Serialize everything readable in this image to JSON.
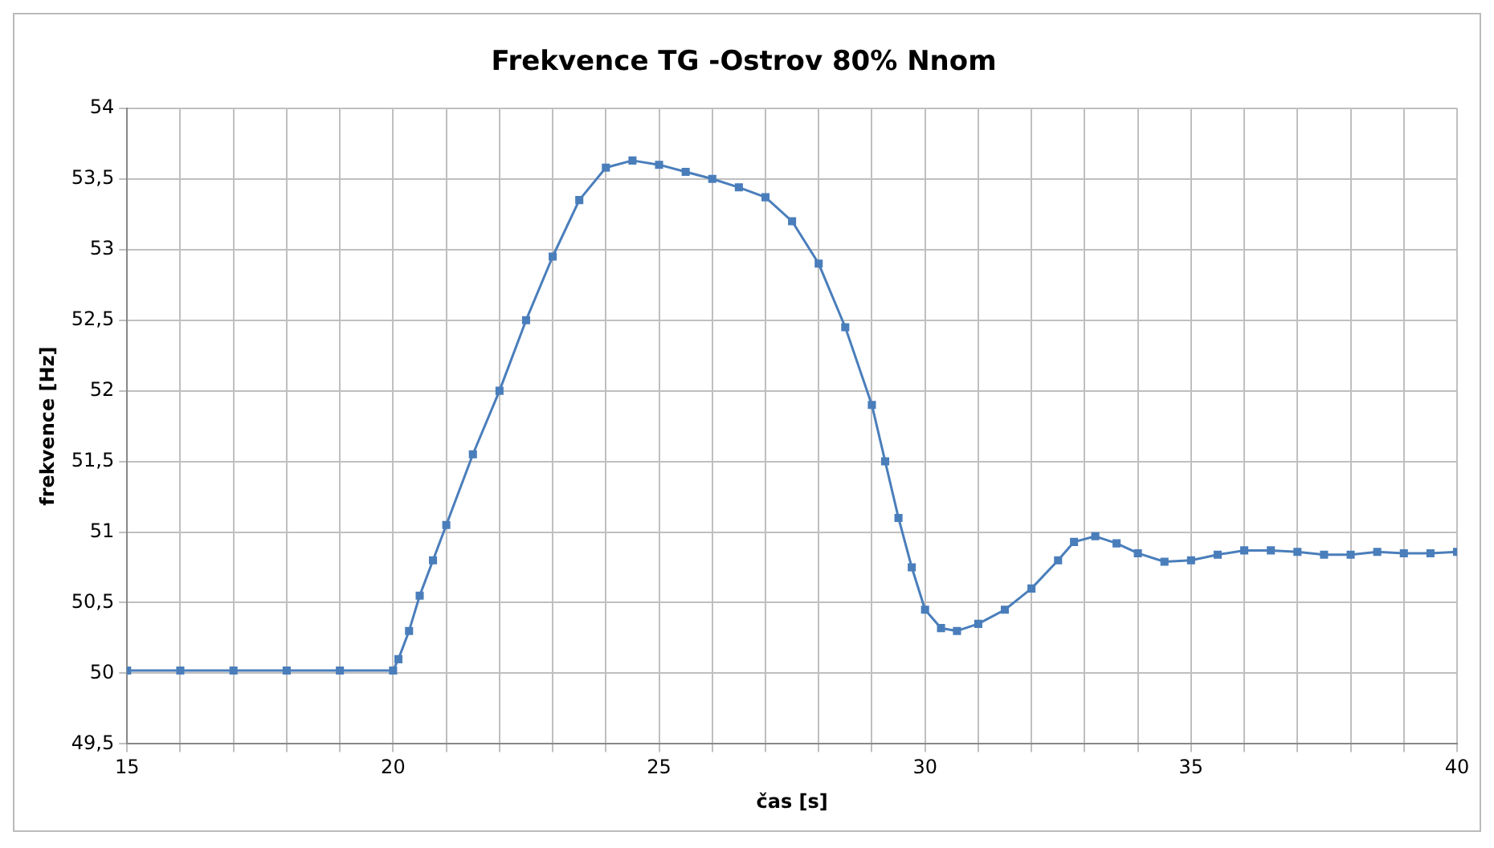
{
  "chart_data": {
    "type": "line",
    "title": "Frekvence TG -Ostrov 80% Nnom",
    "xlabel": "čas [s]",
    "ylabel": "frekvence [Hz]",
    "x": [
      15,
      16,
      17,
      18,
      19,
      20,
      20.1,
      20.3,
      20.5,
      20.75,
      21,
      21.5,
      22,
      22.5,
      23,
      23.5,
      24,
      24.5,
      25,
      25.5,
      26,
      26.5,
      27,
      27.5,
      28,
      28.5,
      29,
      29.25,
      29.5,
      29.75,
      30,
      30.3,
      30.6,
      31,
      31.5,
      32,
      32.5,
      32.8,
      33.2,
      33.6,
      34,
      34.5,
      35,
      35.5,
      36,
      36.5,
      37,
      37.5,
      38,
      38.5,
      39,
      39.5,
      40
    ],
    "series": [
      {
        "color": "#4a7ebb",
        "values": [
          50.02,
          50.02,
          50.02,
          50.02,
          50.02,
          50.02,
          50.1,
          50.3,
          50.55,
          50.8,
          51.05,
          51.55,
          52,
          52.5,
          52.95,
          53.35,
          53.58,
          53.63,
          53.6,
          53.55,
          53.5,
          53.44,
          53.37,
          53.2,
          52.9,
          52.45,
          51.9,
          51.5,
          51.1,
          50.75,
          50.45,
          50.32,
          50.3,
          50.35,
          50.45,
          50.6,
          50.8,
          50.93,
          50.97,
          50.92,
          50.85,
          50.79,
          50.8,
          50.84,
          50.87,
          50.87,
          50.86,
          50.84,
          50.84,
          50.86,
          50.85,
          50.85,
          50.86
        ]
      }
    ],
    "xlim": [
      15,
      40
    ],
    "xticks": [
      15,
      {
        "value": 16,
        "label": null
      },
      {
        "value": 17,
        "label": null
      },
      {
        "value": 18,
        "label": null
      },
      {
        "value": 19,
        "label": null
      },
      20,
      {
        "value": 21,
        "label": null
      },
      {
        "value": 22,
        "label": null
      },
      {
        "value": 23,
        "label": null
      },
      {
        "value": 24,
        "label": null
      },
      25,
      {
        "value": 26,
        "label": null
      },
      {
        "value": 27,
        "label": null
      },
      {
        "value": 28,
        "label": null
      },
      {
        "value": 29,
        "label": null
      },
      30,
      {
        "value": 31,
        "label": null
      },
      {
        "value": 32,
        "label": null
      },
      {
        "value": 33,
        "label": null
      },
      {
        "value": 34,
        "label": null
      },
      35,
      {
        "value": 36,
        "label": null
      },
      {
        "value": 37,
        "label": null
      },
      {
        "value": 38,
        "label": null
      },
      {
        "value": 39,
        "label": null
      },
      40
    ],
    "ylim": [
      49.5,
      54
    ],
    "yticks": [
      {
        "value": 49.5,
        "label": "49,5"
      },
      50,
      {
        "value": 50.5,
        "label": "50,5"
      },
      51,
      {
        "value": 51.5,
        "label": "51,5"
      },
      52,
      {
        "value": 52.5,
        "label": "52,5"
      },
      53,
      {
        "value": 53.5,
        "label": "53,5"
      },
      54
    ],
    "grid": true,
    "legend": false,
    "marker": "square",
    "line_style": "solid"
  }
}
